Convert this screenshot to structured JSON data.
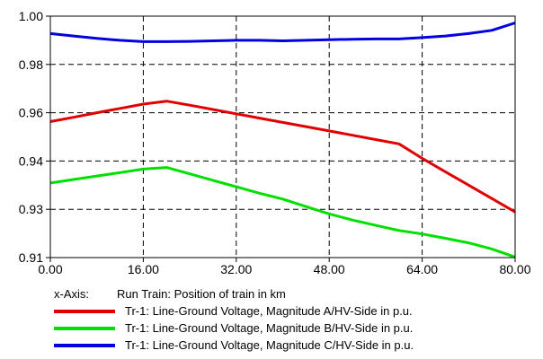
{
  "chart_data": {
    "type": "line",
    "xlim": [
      0,
      80
    ],
    "ylim": [
      0.91,
      1.0
    ],
    "x_ticks": [
      "0.00",
      "16.00",
      "32.00",
      "48.00",
      "64.00",
      "80.00"
    ],
    "y_ticks": [
      "1.00",
      "0.98",
      "0.96",
      "0.94",
      "0.93",
      "0.91"
    ],
    "grid": true,
    "x": [
      0,
      4,
      8,
      12,
      16,
      20,
      24,
      28,
      32,
      36,
      40,
      44,
      48,
      52,
      56,
      60,
      64,
      68,
      72,
      76,
      80
    ],
    "series": [
      {
        "name": "Tr-1: Line-Ground Voltage, Magnitude A/HV-Side in p.u.",
        "color": "#e00000",
        "values": [
          0.9607,
          0.9623,
          0.964,
          0.9656,
          0.9672,
          0.9683,
          0.9668,
          0.9652,
          0.9636,
          0.962,
          0.9604,
          0.9588,
          0.9572,
          0.9556,
          0.954,
          0.9524,
          0.947,
          0.942,
          0.937,
          0.932,
          0.927
        ]
      },
      {
        "name": "Tr-1: Line-Ground Voltage, Magnitude B/HV-Side in p.u.",
        "color": "#00e000",
        "values": [
          0.9378,
          0.9391,
          0.9404,
          0.9417,
          0.943,
          0.9436,
          0.9412,
          0.9388,
          0.9364,
          0.934,
          0.9318,
          0.929,
          0.9263,
          0.924,
          0.922,
          0.9201,
          0.9188,
          0.9172,
          0.9155,
          0.9132,
          0.9102
        ]
      },
      {
        "name": "Tr-1: Line-Ground Voltage, Magnitude C/HV-Side in p.u.",
        "color": "#0000e0",
        "values": [
          0.9935,
          0.9926,
          0.9917,
          0.991,
          0.9905,
          0.9905,
          0.9906,
          0.9908,
          0.991,
          0.991,
          0.9908,
          0.991,
          0.9912,
          0.9914,
          0.9915,
          0.9915,
          0.992,
          0.9926,
          0.9935,
          0.9947,
          0.9975
        ]
      }
    ]
  },
  "x_axis_info": {
    "label": "x-Axis:",
    "value": "Run Train: Position of train in km"
  }
}
